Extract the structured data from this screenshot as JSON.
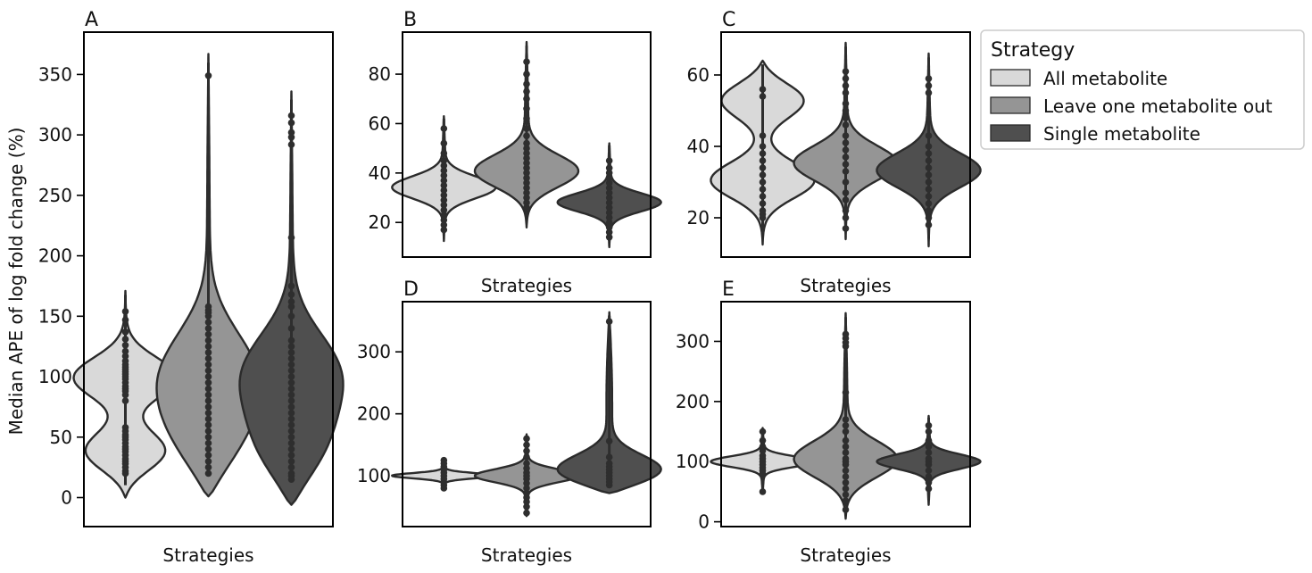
{
  "legend": {
    "title": "Strategy",
    "entries": [
      {
        "label": "All metabolite",
        "color": "#d9d9d9"
      },
      {
        "label": "Leave one metabolite out",
        "color": "#959595"
      },
      {
        "label": "Single metabolite",
        "color": "#4f4f4f"
      }
    ],
    "placement": "right, outside top"
  },
  "colors": {
    "edge": "#2b2b2b",
    "points": "#2e2e2e",
    "axis": "#000000"
  },
  "chart_data": [
    {
      "type": "violin",
      "panel": "A",
      "xlabel": "Strategies",
      "ylabel": "Median APE of log fold change (%)",
      "ylim": [
        -24,
        385
      ],
      "yticks": [
        0,
        50,
        100,
        150,
        200,
        250,
        300,
        350
      ],
      "grid": false,
      "series": [
        {
          "name": "All metabolite",
          "extent": [
            0,
            171
          ],
          "bimodal_peaks": [
            35,
            100
          ],
          "points": [
            20,
            22,
            25,
            28,
            30,
            32,
            35,
            38,
            40,
            42,
            45,
            48,
            50,
            52,
            55,
            58,
            80,
            85,
            88,
            90,
            92,
            95,
            98,
            100,
            102,
            104,
            106,
            108,
            110,
            113,
            117,
            121,
            126,
            131,
            137,
            147,
            154
          ]
        },
        {
          "name": "Leave one metabolite out",
          "extent": [
            1,
            367
          ],
          "bimodal_peaks": [
            40,
            100
          ],
          "points": [
            20,
            25,
            30,
            35,
            40,
            45,
            50,
            55,
            60,
            65,
            70,
            75,
            80,
            85,
            90,
            95,
            100,
            105,
            110,
            115,
            120,
            125,
            130,
            135,
            140,
            145,
            150,
            153,
            155,
            158,
            349
          ]
        },
        {
          "name": "Single metabolite",
          "extent": [
            -6,
            336
          ],
          "bimodal_peaks": [
            33,
            100
          ],
          "points": [
            15,
            18,
            20,
            25,
            30,
            35,
            40,
            45,
            50,
            55,
            60,
            65,
            70,
            75,
            80,
            85,
            90,
            95,
            100,
            105,
            110,
            115,
            120,
            125,
            130,
            140,
            150,
            158,
            162,
            168,
            175,
            215,
            292,
            298,
            302,
            310,
            316
          ]
        }
      ]
    },
    {
      "type": "violin",
      "panel": "B",
      "xlabel": "Strategies",
      "ylabel": "",
      "ylim": [
        6,
        97
      ],
      "yticks": [
        20,
        40,
        60,
        80
      ],
      "grid": false,
      "series": [
        {
          "name": "All metabolite",
          "extent": [
            12.5,
            63
          ],
          "peak": 34,
          "points": [
            17,
            19,
            21,
            23,
            25,
            27,
            29,
            31,
            33,
            35,
            37,
            39,
            41,
            43,
            45,
            48,
            52,
            58
          ]
        },
        {
          "name": "Leave one metabolite out",
          "extent": [
            18,
            93
          ],
          "peak": 40,
          "points": [
            26,
            28,
            30,
            32,
            34,
            36,
            38,
            40,
            42,
            44,
            46,
            48,
            50,
            52,
            55,
            58,
            62,
            66,
            70,
            73,
            76,
            80,
            85
          ]
        },
        {
          "name": "Single metabolite",
          "extent": [
            10,
            52
          ],
          "peak": 28,
          "points": [
            14,
            16,
            18,
            20,
            22,
            24,
            26,
            28,
            30,
            32,
            34,
            36,
            38,
            40,
            42,
            45
          ]
        }
      ]
    },
    {
      "type": "violin",
      "panel": "C",
      "xlabel": "Strategies",
      "ylabel": "",
      "ylim": [
        9,
        72
      ],
      "yticks": [
        20,
        40,
        60
      ],
      "grid": false,
      "series": [
        {
          "name": "All metabolite",
          "extent": [
            12.5,
            64
          ],
          "bimodal_peaks": [
            30,
            54
          ],
          "points": [
            20,
            21,
            22,
            24,
            26,
            28,
            30,
            32,
            34,
            36,
            38,
            40,
            43,
            54,
            56
          ]
        },
        {
          "name": "Leave one metabolite out",
          "extent": [
            14,
            69
          ],
          "peak": 35,
          "points": [
            17,
            20,
            22,
            25,
            27,
            30,
            33,
            35,
            37,
            39,
            41,
            43,
            46,
            48,
            50,
            52,
            55,
            57,
            59,
            61
          ]
        },
        {
          "name": "Single metabolite",
          "extent": [
            12,
            66
          ],
          "peak": 33,
          "points": [
            18,
            20,
            22,
            24,
            26,
            28,
            30,
            32,
            34,
            36,
            38,
            40,
            43,
            55,
            57,
            59
          ]
        }
      ]
    },
    {
      "type": "violin",
      "panel": "D",
      "xlabel": "Strategies",
      "ylabel": "",
      "ylim": [
        18,
        381
      ],
      "yticks": [
        100,
        200,
        300
      ],
      "grid": false,
      "series": [
        {
          "name": "All metabolite",
          "extent": [
            79,
            127
          ],
          "peak": 100,
          "points": [
            80,
            85,
            90,
            95,
            100,
            105,
            110,
            115,
            120,
            125
          ]
        },
        {
          "name": "Leave one metabolite out",
          "extent": [
            35,
            167
          ],
          "peak": 100,
          "points": [
            40,
            50,
            58,
            65,
            72,
            80,
            88,
            95,
            100,
            105,
            112,
            120,
            130,
            140,
            150,
            160
          ]
        },
        {
          "name": "Single metabolite",
          "extent": [
            72,
            364
          ],
          "peak": 100,
          "points": [
            85,
            90,
            95,
            100,
            105,
            110,
            115,
            120,
            130,
            156,
            349
          ]
        }
      ]
    },
    {
      "type": "violin",
      "panel": "E",
      "xlabel": "Strategies",
      "ylabel": "",
      "ylim": [
        -8,
        366
      ],
      "yticks": [
        0,
        100,
        200,
        300
      ],
      "grid": false,
      "series": [
        {
          "name": "All metabolite",
          "extent": [
            48,
            156
          ],
          "peak": 100,
          "points": [
            50,
            80,
            85,
            90,
            95,
            100,
            105,
            110,
            118,
            125,
            135,
            150
          ]
        },
        {
          "name": "Leave one metabolite out",
          "extent": [
            5,
            347
          ],
          "peak": 100,
          "points": [
            20,
            35,
            45,
            55,
            65,
            75,
            85,
            95,
            100,
            105,
            115,
            125,
            135,
            150,
            160,
            170,
            215,
            292,
            298,
            305,
            312
          ]
        },
        {
          "name": "Single metabolite",
          "extent": [
            28,
            176
          ],
          "peak": 100,
          "points": [
            55,
            65,
            75,
            85,
            95,
            100,
            105,
            115,
            125,
            135,
            150,
            160
          ]
        }
      ]
    }
  ]
}
